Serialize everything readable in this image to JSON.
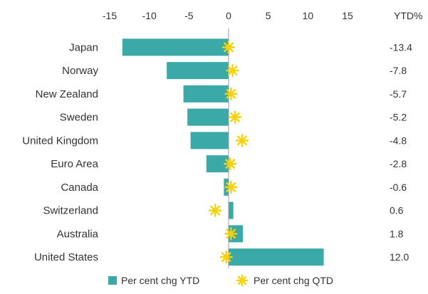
{
  "chart_data": {
    "type": "bar",
    "orientation": "horizontal",
    "categories": [
      "Japan",
      "Norway",
      "New Zealand",
      "Sweden",
      "United Kingdom",
      "Euro Area",
      "Canada",
      "Switzerland",
      "Australia",
      "United States"
    ],
    "xlim": [
      -15,
      15
    ],
    "x_ticks": [
      -15,
      -10,
      -5,
      0,
      5,
      10,
      15
    ],
    "x_tick_labels": [
      "-15",
      "-10",
      "-5",
      "0",
      "5",
      "10",
      "15"
    ],
    "value_column_header": "YTD%",
    "value_labels": [
      "-13.4",
      "-7.8",
      "-5.7",
      "-5.2",
      "-4.8",
      "-2.8",
      "-0.6",
      "0.6",
      "1.8",
      "12.0"
    ],
    "series": [
      {
        "name": "Per cent chg YTD",
        "mark": "bar",
        "color": "#3aa9a8",
        "values": [
          -13.4,
          -7.8,
          -5.7,
          -5.2,
          -4.8,
          -2.8,
          -0.6,
          0.6,
          1.8,
          12.0
        ]
      },
      {
        "name": "Per cent chg QTD",
        "mark": "star",
        "color": "#f5d20a",
        "values": [
          0.0,
          0.5,
          0.3,
          0.8,
          1.7,
          0.2,
          0.3,
          -1.7,
          0.3,
          -0.3
        ]
      }
    ],
    "legend_position": "bottom",
    "grid": false
  }
}
